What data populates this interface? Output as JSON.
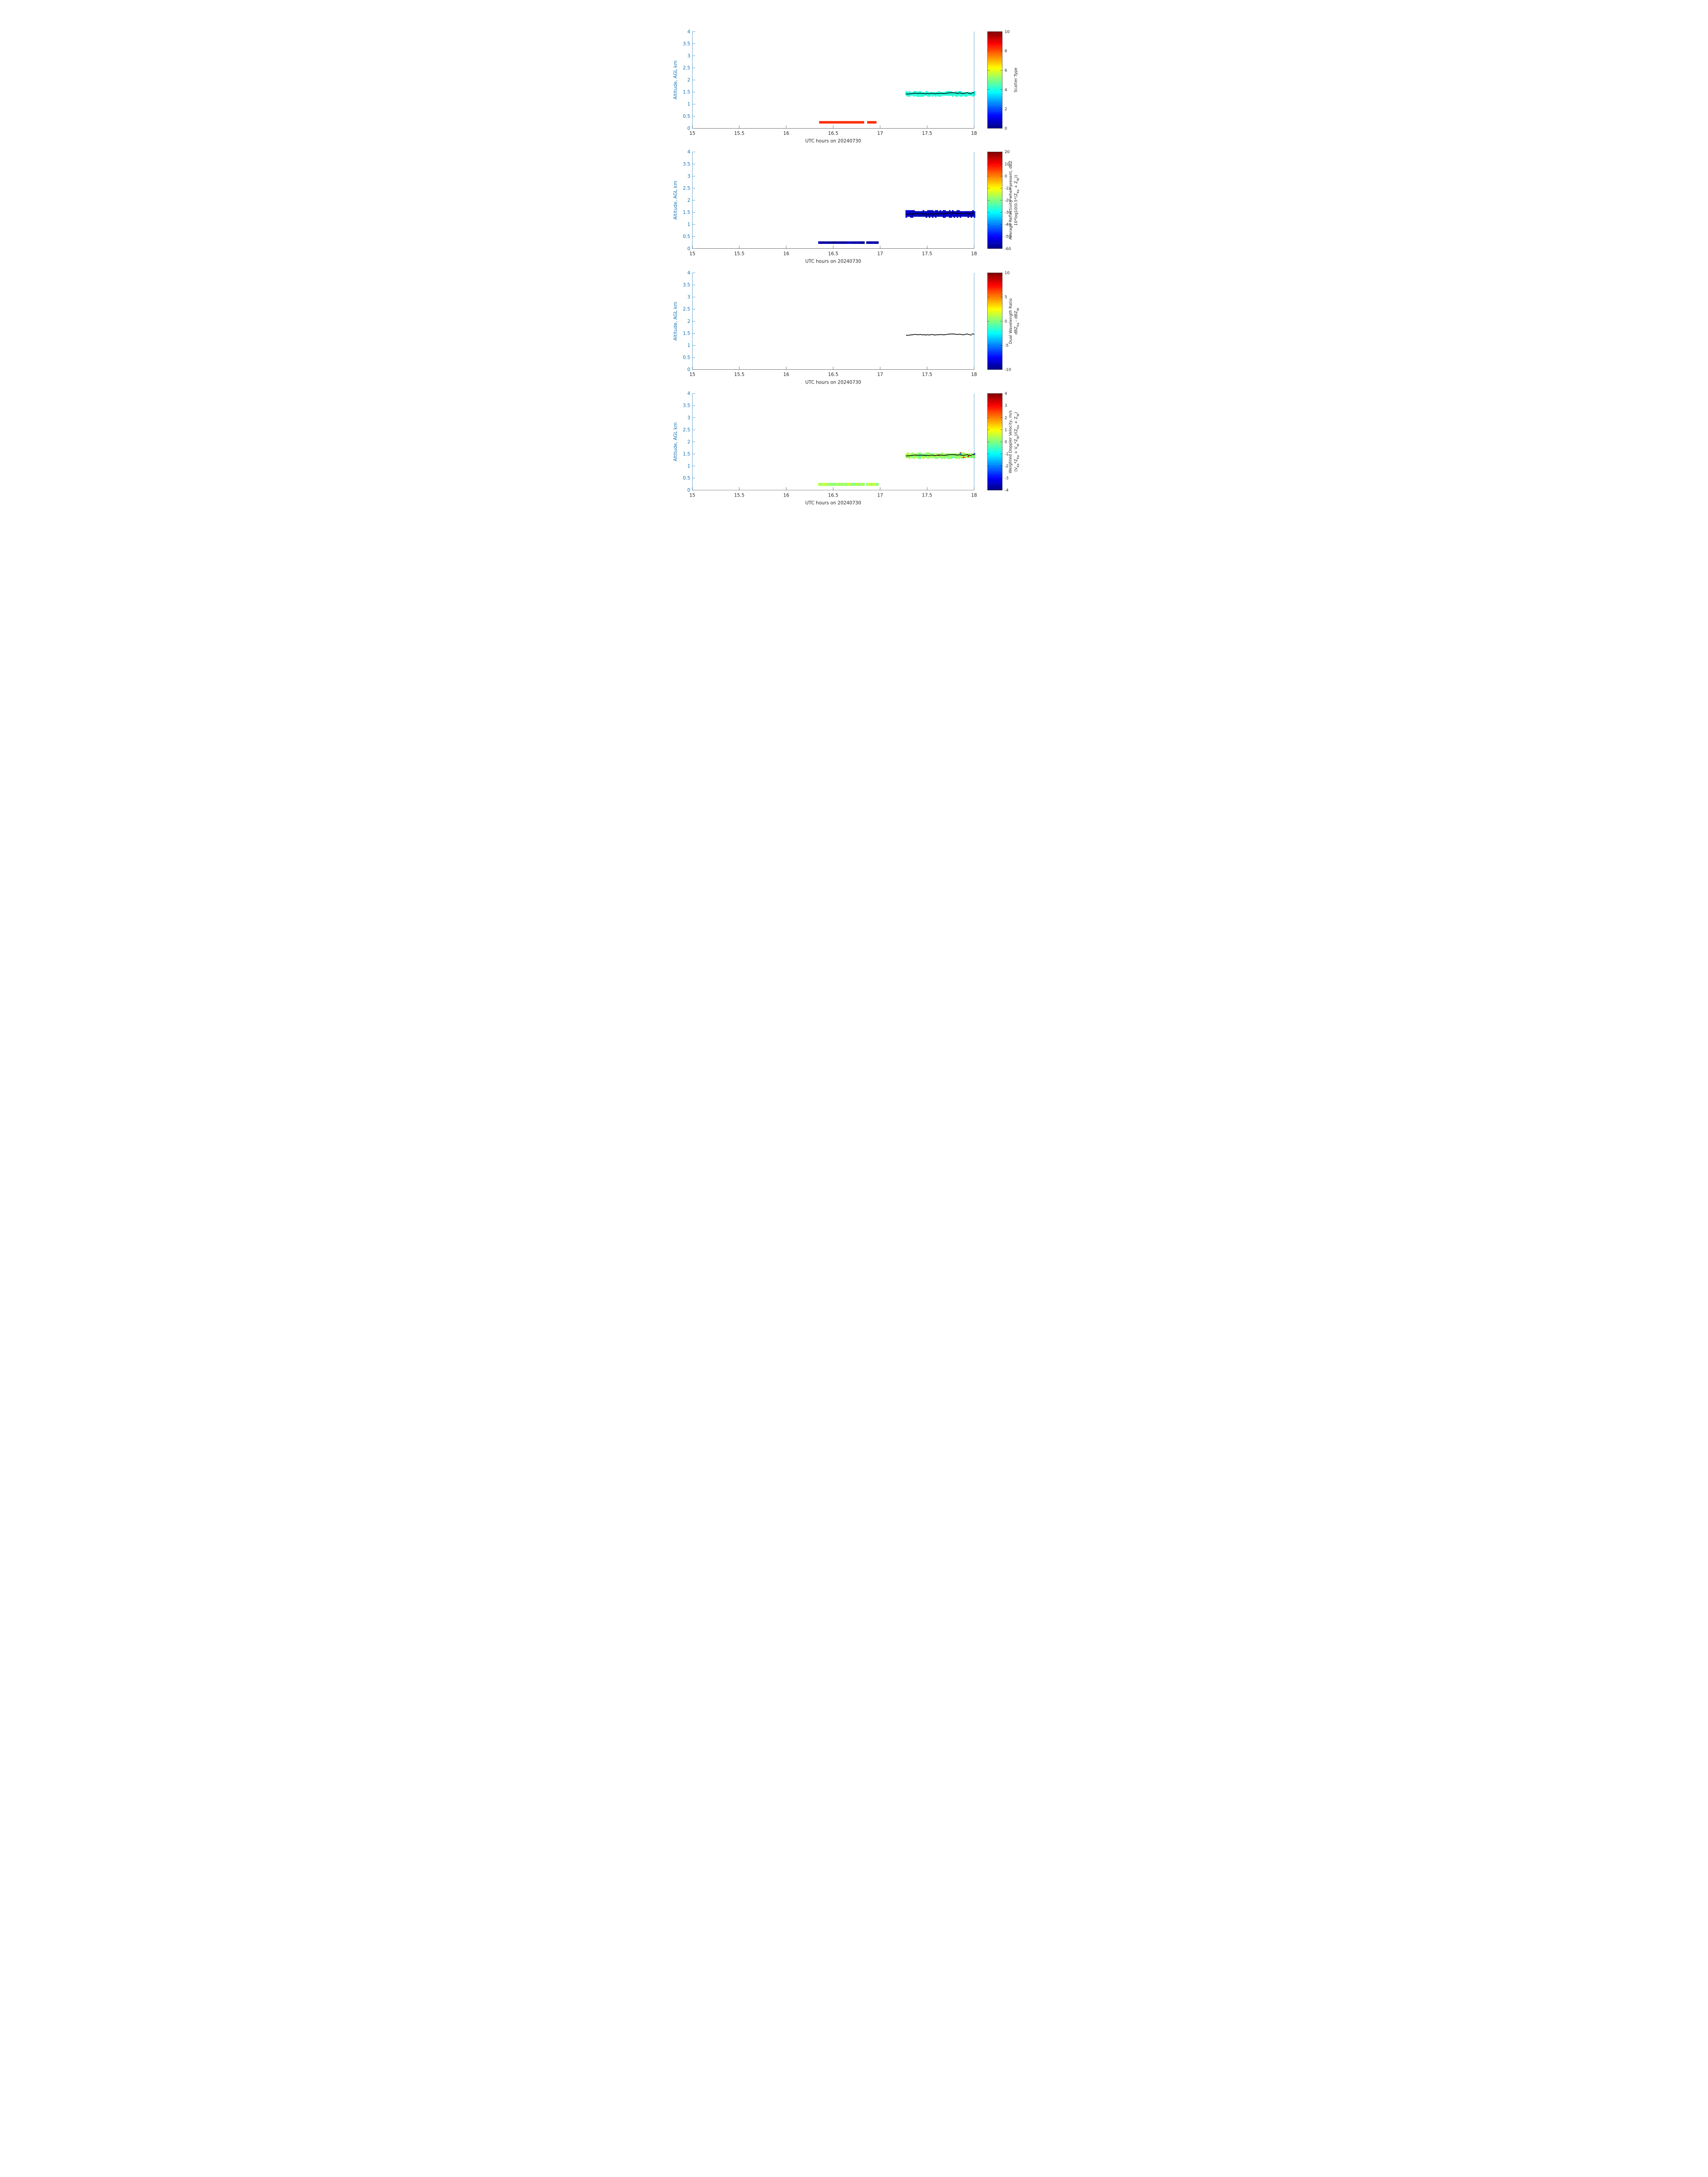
{
  "figure": {
    "background": "#ffffff",
    "axis_color": "#0b72b4",
    "text_color": "#262626"
  },
  "chart_data": [
    {
      "type": "heatmap",
      "xlabel": "UTC hours on 20240730",
      "ylabel": "Altitude, AGL km",
      "xlim": [
        15,
        18
      ],
      "ylim": [
        0,
        4
      ],
      "xticks": [
        "15",
        "15.5",
        "16",
        "16.5",
        "17",
        "17.5",
        "18"
      ],
      "yticks": [
        "0",
        "0.5",
        "1",
        "1.5",
        "2",
        "2.5",
        "3",
        "3.5",
        "4"
      ],
      "colorbar": {
        "label_lines": [
          "Scatter Type"
        ],
        "clim": [
          0,
          10
        ],
        "ticks": [
          "0",
          "2",
          "4",
          "6",
          "8",
          "10"
        ],
        "colormap": "jet"
      },
      "layers": [
        {
          "name": "lower",
          "x_start": 16.35,
          "x_end": 16.96,
          "y_start": 0.2,
          "y_end": 0.3,
          "value": 8.3,
          "gaps": [
            [
              16.82,
              16.85
            ]
          ]
        },
        {
          "name": "upper",
          "x_start": 17.27,
          "x_end": 18.0,
          "y_start": 1.35,
          "y_end": 1.5,
          "value": 4.1
        }
      ],
      "cloud_base_dots": true
    },
    {
      "type": "heatmap",
      "xlabel": "UTC hours on 20240730",
      "ylabel": "Altitude, AGL km",
      "xlim": [
        15,
        18
      ],
      "ylim": [
        0,
        4
      ],
      "xticks": [
        "15",
        "15.5",
        "16",
        "16.5",
        "17",
        "17.5",
        "18"
      ],
      "yticks": [
        "0",
        "0.5",
        "1",
        "1.5",
        "2",
        "2.5",
        "3",
        "3.5",
        "4"
      ],
      "colorbar": {
        "label_lines": [
          "Average Reflectivity when present, dBZ",
          "10*log10(0.5*(Z<sub>Ka</sub> + Z<sub>W</sub>))"
        ],
        "clim": [
          -60,
          20
        ],
        "ticks": [
          "-60",
          "-50",
          "-40",
          "-30",
          "-20",
          "-10",
          "0",
          "10",
          "20"
        ],
        "colormap": "jet"
      },
      "layers": [
        {
          "name": "lower",
          "x_start": 16.34,
          "x_end": 16.98,
          "y_start": 0.2,
          "y_end": 0.3,
          "value": -57,
          "gaps": [
            [
              16.83,
              16.85
            ]
          ]
        },
        {
          "name": "upper",
          "x_start": 17.27,
          "x_end": 18.0,
          "y_start": 1.32,
          "y_end": 1.55,
          "value": -55
        }
      ],
      "cloud_base_dots": true
    },
    {
      "type": "heatmap",
      "xlabel": "UTC hours on 20240730",
      "ylabel": "Altitude, AGL km",
      "xlim": [
        15,
        18
      ],
      "ylim": [
        0,
        4
      ],
      "xticks": [
        "15",
        "15.5",
        "16",
        "16.5",
        "17",
        "17.5",
        "18"
      ],
      "yticks": [
        "0",
        "0.5",
        "1",
        "1.5",
        "2",
        "2.5",
        "3",
        "3.5",
        "4"
      ],
      "colorbar": {
        "label_lines": [
          "Dual Wavelength Ratio",
          "dBZ<sub>Ka</sub> - dBZ<sub>W</sub>"
        ],
        "clim": [
          -10,
          10
        ],
        "ticks": [
          "-10",
          "-5",
          "0",
          "5",
          "10"
        ],
        "colormap": "jet"
      },
      "layers": [],
      "cloud_base_dots": true
    },
    {
      "type": "heatmap",
      "xlabel": "UTC hours on 20240730",
      "ylabel": "Altitude, AGL km",
      "xlim": [
        15,
        18
      ],
      "ylim": [
        0,
        4
      ],
      "xticks": [
        "15",
        "15.5",
        "16",
        "16.5",
        "17",
        "17.5",
        "18"
      ],
      "yticks": [
        "0",
        "0.5",
        "1",
        "1.5",
        "2",
        "2.5",
        "3",
        "3.5",
        "4"
      ],
      "colorbar": {
        "label_lines": [
          "Weighted Doppler Velocity, m/s",
          "(V<sub>Ka</sub>*Z<sub>Ka</sub> + V<sub>W</sub>*Z<sub>W</sub>)/(Z<sub>Ka</sub> + Z<sub>W</sub>)"
        ],
        "clim": [
          -4,
          4
        ],
        "ticks": [
          "-4",
          "-3",
          "-2",
          "-1",
          "0",
          "1",
          "2",
          "3",
          "4"
        ],
        "colormap": "jet"
      },
      "layers": [
        {
          "name": "lower",
          "x_start": 16.34,
          "x_end": 16.98,
          "y_start": 0.18,
          "y_end": 0.3,
          "value": 0.3,
          "gaps": [
            [
              16.83,
              16.85
            ]
          ]
        },
        {
          "name": "upper",
          "x_start": 17.27,
          "x_end": 18.0,
          "y_start": 1.33,
          "y_end": 1.52,
          "value": 0.2
        }
      ],
      "cloud_base_dots": true
    }
  ],
  "cloud_base": {
    "x": [
      17.28,
      17.3,
      17.32,
      17.34,
      17.36,
      17.38,
      17.4,
      17.42,
      17.44,
      17.46,
      17.48,
      17.5,
      17.52,
      17.54,
      17.56,
      17.58,
      17.6,
      17.62,
      17.64,
      17.66,
      17.68,
      17.7,
      17.72,
      17.74,
      17.76,
      17.78,
      17.8,
      17.82,
      17.84,
      17.86,
      17.88,
      17.9,
      17.92,
      17.94,
      17.96,
      17.98,
      18.0
    ],
    "y": [
      1.42,
      1.42,
      1.43,
      1.44,
      1.45,
      1.45,
      1.44,
      1.45,
      1.44,
      1.44,
      1.43,
      1.44,
      1.43,
      1.45,
      1.44,
      1.43,
      1.44,
      1.44,
      1.45,
      1.44,
      1.44,
      1.45,
      1.46,
      1.47,
      1.47,
      1.47,
      1.46,
      1.45,
      1.46,
      1.45,
      1.44,
      1.45,
      1.47,
      1.45,
      1.43,
      1.47,
      1.46
    ]
  }
}
